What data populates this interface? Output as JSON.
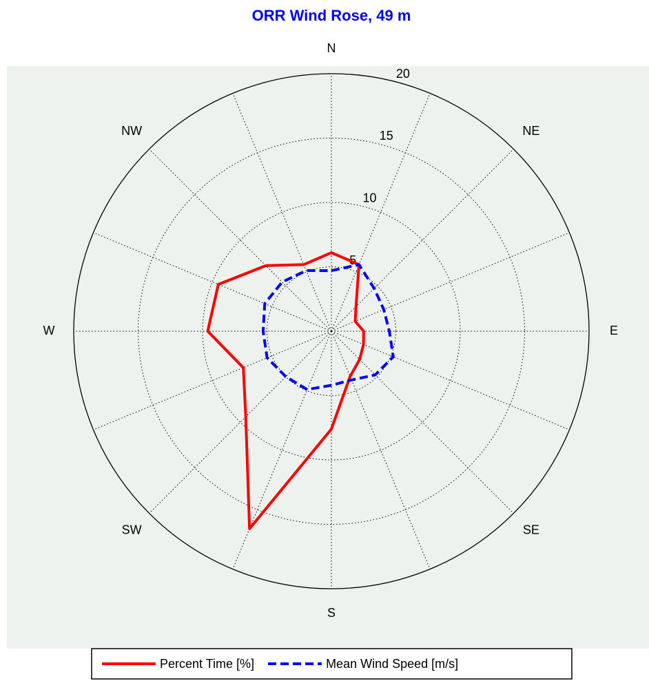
{
  "chart_data": {
    "type": "polar",
    "title": "ORR Wind Rose, 49 m",
    "categories": [
      "N",
      null,
      "NE",
      null,
      "E",
      null,
      "SE",
      null,
      "S",
      null,
      "SW",
      null,
      "W",
      null,
      "NW",
      null
    ],
    "series": [
      {
        "name": "Percent Time [%]",
        "color": "#ff0000",
        "line_style": "solid",
        "values": [
          6.1,
          5.6,
          2.7,
          2.0,
          2.5,
          2.7,
          3.1,
          3.8,
          7.6,
          16.6,
          9.4,
          7.4,
          9.6,
          9.5,
          7.2,
          5.6
        ]
      },
      {
        "name": "Mean Wind Speed [m/s]",
        "color": "#0000ff",
        "line_style": "dashed",
        "values": [
          4.7,
          5.6,
          4.7,
          4.4,
          4.5,
          5.2,
          4.8,
          4.1,
          4.2,
          4.9,
          5.0,
          5.4,
          5.3,
          5.6,
          5.4,
          5.1
        ]
      }
    ],
    "rlim": [
      0,
      20
    ],
    "rticks": [
      5,
      10,
      15,
      20
    ],
    "grid": true
  }
}
